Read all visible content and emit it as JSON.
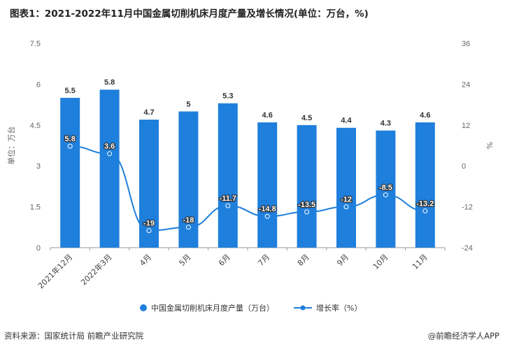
{
  "title": "图表1：2021-2022年11月中国金属切削机床月度产量及增长情况(单位：万台，%)",
  "footer": {
    "source": "资料来源：国家统计局 前瞻产业研究院",
    "brand": "@前瞻经济学人APP"
  },
  "colors": {
    "bar": "#1f7fdc",
    "line": "#1f7fdc",
    "axis_text": "#666666",
    "label_text": "#333333"
  },
  "chart_data": {
    "type": "bar",
    "categories": [
      "2021年12月",
      "2022年3月",
      "4月",
      "5月",
      "6月",
      "7月",
      "8月",
      "9月",
      "10月",
      "11月"
    ],
    "series": [
      {
        "name": "中国金属切削机床月度产量（万台）",
        "type": "bar",
        "axis": "left",
        "values": [
          5.5,
          5.8,
          4.7,
          5,
          5.3,
          4.6,
          4.5,
          4.4,
          4.3,
          4.6
        ],
        "labels": [
          "5.5",
          "5.8",
          "4.7",
          "5",
          "5.3",
          "4.6",
          "4.5",
          "4.4",
          "4.3",
          "4.6"
        ]
      },
      {
        "name": "增长率（%）",
        "type": "line",
        "axis": "right",
        "values": [
          5.8,
          3.6,
          -19,
          -18,
          -11.7,
          -14.8,
          -13.5,
          -12,
          -8.5,
          -13.2
        ],
        "labels": [
          "5.8",
          "3.6",
          "-19",
          "-18",
          "-11.7",
          "-14.8",
          "-13.5",
          "-12",
          "-8.5",
          "-13.2"
        ]
      }
    ],
    "y_left": {
      "label": "单位：万台",
      "min": 0,
      "max": 7.5,
      "ticks": [
        0,
        1.5,
        3,
        4.5,
        6,
        7.5
      ],
      "tick_labels": [
        "0",
        "1.5",
        "3",
        "4.5",
        "6",
        "7.5"
      ]
    },
    "y_right": {
      "label": "%",
      "min": -24,
      "max": 36,
      "ticks": [
        -24,
        -12,
        0,
        12,
        24,
        36
      ],
      "tick_labels": [
        "-24",
        "-12",
        "0",
        "12",
        "24",
        "36"
      ]
    },
    "legend": {
      "position": "bottom",
      "entries": [
        "中国金属切削机床月度产量（万台）",
        "增长率（%）"
      ]
    },
    "grid": false
  }
}
